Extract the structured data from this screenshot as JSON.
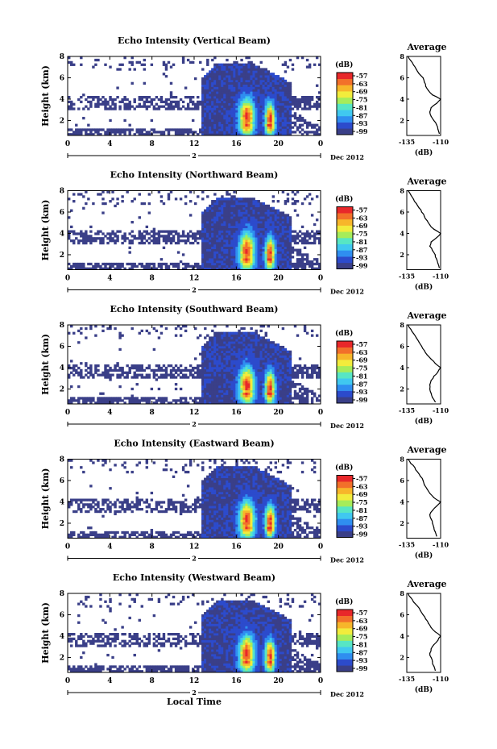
{
  "figure": {
    "xlabel": "Local Time",
    "month_label": "Dec 2012"
  },
  "colorbar": {
    "unit": "(dB)",
    "ticks": [
      "-57",
      "-63",
      "-69",
      "-75",
      "-81",
      "-87",
      "-93",
      "-99"
    ],
    "colors": [
      "#3a3f88",
      "#2c4bcc",
      "#2f8ef0",
      "#40c8f0",
      "#57e6c4",
      "#a6ec5a",
      "#f2ec3c",
      "#f7b62a",
      "#f2702a",
      "#e8282a"
    ]
  },
  "chart_data": [
    {
      "type": "heatmap",
      "title": "Echo Intensity (Vertical Beam)",
      "ylabel": "Height (km)",
      "x_ticks": [
        "0",
        "4",
        "8",
        "12",
        "16",
        "20",
        "0"
      ],
      "x_range_hours": [
        0,
        24
      ],
      "date_label": "2",
      "y_ticks": [
        "2",
        "4",
        "6",
        "8"
      ],
      "y_range_km": [
        0.6,
        8
      ],
      "z_range_db": [
        -99,
        -57
      ],
      "profile": {
        "title": "Average",
        "xlabel": "(dB)",
        "x_ticks": [
          "-135",
          "-110"
        ],
        "x_range": [
          -135,
          -110
        ],
        "y_ticks": [
          "2",
          "4",
          "6",
          "8"
        ],
        "y_range": [
          0.6,
          8
        ],
        "heights": [
          0.8,
          1.2,
          1.6,
          2.0,
          2.4,
          2.8,
          3.2,
          3.6,
          4.0,
          4.4,
          4.8,
          5.2,
          5.6,
          6.0,
          6.4,
          6.8,
          7.2,
          7.6,
          8.0
        ],
        "values": [
          -111,
          -112,
          -113,
          -115,
          -117,
          -118,
          -117,
          -113,
          -110,
          -116,
          -119,
          -121,
          -122,
          -123,
          -126,
          -128,
          -130,
          -132,
          -134
        ]
      }
    },
    {
      "type": "heatmap",
      "title": "Echo Intensity (Northward Beam)",
      "ylabel": "Height (km)",
      "x_ticks": [
        "0",
        "4",
        "8",
        "12",
        "16",
        "20",
        "0"
      ],
      "x_range_hours": [
        0,
        24
      ],
      "date_label": "2",
      "y_ticks": [
        "2",
        "4",
        "6",
        "8"
      ],
      "y_range_km": [
        0.6,
        8
      ],
      "z_range_db": [
        -99,
        -57
      ],
      "profile": {
        "title": "Average",
        "xlabel": "(dB)",
        "x_ticks": [
          "-135",
          "-110"
        ],
        "x_range": [
          -135,
          -110
        ],
        "y_ticks": [
          "2",
          "4",
          "6",
          "8"
        ],
        "y_range": [
          0.6,
          8
        ],
        "heights": [
          0.8,
          1.2,
          1.6,
          2.0,
          2.4,
          2.8,
          3.2,
          3.6,
          4.0,
          4.4,
          4.8,
          5.2,
          5.6,
          6.0,
          6.4,
          6.8,
          7.2,
          7.6,
          8.0
        ],
        "values": [
          -111,
          -112,
          -113,
          -114,
          -116,
          -118,
          -117,
          -113,
          -110,
          -115,
          -118,
          -120,
          -122,
          -124,
          -126,
          -128,
          -130,
          -132,
          -134
        ]
      }
    },
    {
      "type": "heatmap",
      "title": "Echo Intensity (Southward Beam)",
      "ylabel": "Height (km)",
      "x_ticks": [
        "0",
        "4",
        "8",
        "12",
        "16",
        "20",
        "0"
      ],
      "x_range_hours": [
        0,
        24
      ],
      "date_label": "2",
      "y_ticks": [
        "2",
        "4",
        "6",
        "8"
      ],
      "y_range_km": [
        0.6,
        8
      ],
      "z_range_db": [
        -99,
        -57
      ],
      "profile": {
        "title": "Average",
        "xlabel": "(dB)",
        "x_ticks": [
          "-135",
          "-110"
        ],
        "x_range": [
          -135,
          -110
        ],
        "y_ticks": [
          "2",
          "4",
          "6",
          "8"
        ],
        "y_range": [
          0.6,
          8
        ],
        "heights": [
          0.8,
          1.2,
          1.6,
          2.0,
          2.4,
          2.8,
          3.2,
          3.6,
          4.0,
          4.4,
          4.8,
          5.2,
          5.6,
          6.0,
          6.4,
          6.8,
          7.2,
          7.6,
          8.0
        ],
        "values": [
          -114,
          -116,
          -117,
          -118,
          -118,
          -117,
          -115,
          -112,
          -110,
          -114,
          -117,
          -120,
          -122,
          -124,
          -126,
          -128,
          -130,
          -132,
          -134
        ]
      }
    },
    {
      "type": "heatmap",
      "title": "Echo Intensity (Eastward Beam)",
      "ylabel": "Height (km)",
      "x_ticks": [
        "0",
        "4",
        "8",
        "12",
        "16",
        "20",
        "0"
      ],
      "x_range_hours": [
        0,
        24
      ],
      "date_label": "2",
      "y_ticks": [
        "2",
        "4",
        "6",
        "8"
      ],
      "y_range_km": [
        0.6,
        8
      ],
      "z_range_db": [
        -99,
        -57
      ],
      "profile": {
        "title": "Average",
        "xlabel": "(dB)",
        "x_ticks": [
          "-135",
          "-110"
        ],
        "x_range": [
          -135,
          -110
        ],
        "y_ticks": [
          "2",
          "4",
          "6",
          "8"
        ],
        "y_range": [
          0.6,
          8
        ],
        "heights": [
          0.8,
          1.2,
          1.6,
          2.0,
          2.4,
          2.8,
          3.2,
          3.6,
          4.0,
          4.4,
          4.8,
          5.2,
          5.6,
          6.0,
          6.4,
          6.8,
          7.2,
          7.6,
          8.0
        ],
        "values": [
          -113,
          -114,
          -115,
          -116,
          -117,
          -118,
          -116,
          -113,
          -110,
          -115,
          -118,
          -120,
          -122,
          -123,
          -125,
          -127,
          -129,
          -132,
          -134
        ]
      }
    },
    {
      "type": "heatmap",
      "title": "Echo Intensity (Westward Beam)",
      "ylabel": "Height (km)",
      "x_ticks": [
        "0",
        "4",
        "8",
        "12",
        "16",
        "20",
        "0"
      ],
      "x_range_hours": [
        0,
        24
      ],
      "date_label": "2",
      "y_ticks": [
        "2",
        "4",
        "6",
        "8"
      ],
      "y_range_km": [
        0.6,
        8
      ],
      "z_range_db": [
        -99,
        -57
      ],
      "profile": {
        "title": "Average",
        "xlabel": "(dB)",
        "x_ticks": [
          "-135",
          "-110"
        ],
        "x_range": [
          -135,
          -110
        ],
        "y_ticks": [
          "2",
          "4",
          "6",
          "8"
        ],
        "y_range": [
          0.6,
          8
        ],
        "heights": [
          0.8,
          1.2,
          1.6,
          2.0,
          2.4,
          2.8,
          3.2,
          3.6,
          4.0,
          4.4,
          4.8,
          5.2,
          5.6,
          6.0,
          6.4,
          6.8,
          7.2,
          7.6,
          8.0
        ],
        "values": [
          -114,
          -115,
          -116,
          -117,
          -118,
          -117,
          -115,
          -112,
          -110,
          -114,
          -117,
          -119,
          -121,
          -123,
          -125,
          -127,
          -130,
          -132,
          -134
        ]
      }
    }
  ]
}
